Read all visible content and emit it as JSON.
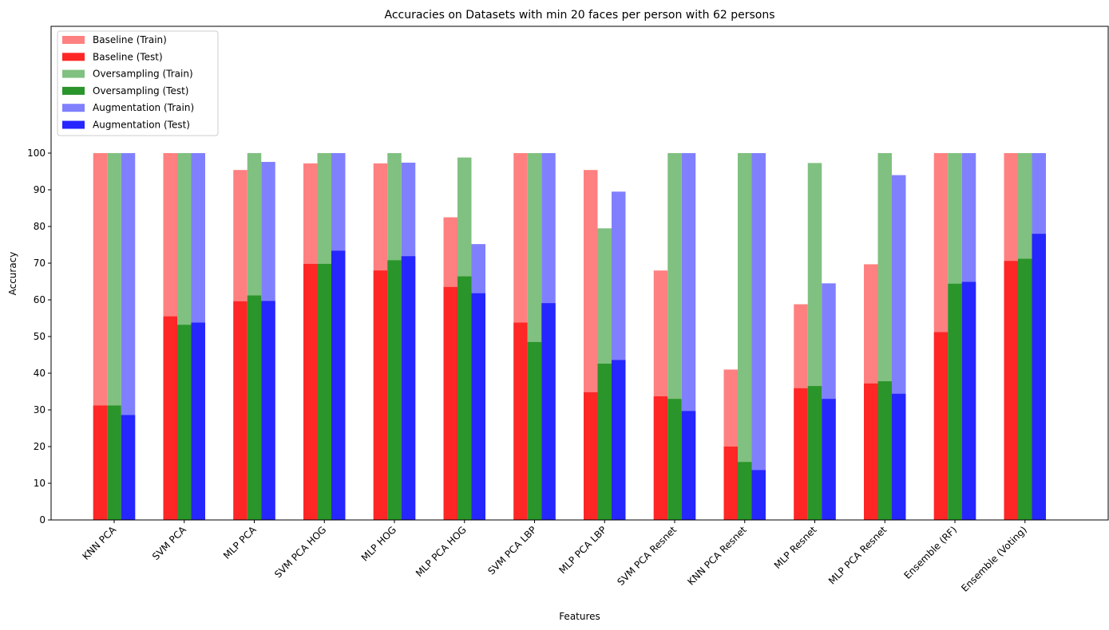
{
  "chart_data": {
    "type": "bar",
    "title": "Accuracies on Datasets with min 20 faces per person with 62 persons",
    "xlabel": "Features",
    "ylabel": "Accuracy",
    "ylim": [
      0,
      120
    ],
    "yticks": [
      0,
      10,
      20,
      30,
      40,
      50,
      60,
      70,
      80,
      90,
      100
    ],
    "grid": false,
    "legend_position": "top-left",
    "categories": [
      "KNN PCA",
      "SVM PCA",
      "MLP PCA",
      "SVM PCA HOG",
      "MLP HOG",
      "MLP PCA HOG",
      "SVM PCA LBP",
      "MLP PCA LBP",
      "SVM PCA Resnet",
      "KNN PCA Resnet",
      "MLP Resnet",
      "MLP PCA Resnet",
      "Ensemble (RF)",
      "Ensemble (Voting)"
    ],
    "groups": [
      {
        "name": "Baseline",
        "train_color": "#ff8080",
        "test_color": "#ff2626",
        "train": {
          "name": "Baseline (Train)",
          "values": [
            100,
            100,
            95.4,
            97.2,
            97.2,
            82.5,
            100,
            95.4,
            68,
            41,
            58.8,
            69.7,
            100,
            100
          ]
        },
        "test": {
          "name": "Baseline (Test)",
          "values": [
            31.2,
            55.5,
            59.6,
            69.8,
            68,
            63.5,
            53.8,
            34.8,
            33.7,
            20,
            35.9,
            37.2,
            51.2,
            70.6
          ]
        }
      },
      {
        "name": "Oversampling",
        "train_color": "#80c080",
        "test_color": "#2a952a",
        "train": {
          "name": "Oversampling (Train)",
          "values": [
            100,
            100,
            100,
            100,
            100,
            98.8,
            100,
            79.5,
            100,
            100,
            97.3,
            100,
            100,
            100
          ]
        },
        "test": {
          "name": "Oversampling (Test)",
          "values": [
            31.2,
            53.2,
            61.2,
            69.8,
            70.8,
            66.4,
            48.5,
            42.6,
            33,
            15.8,
            36.5,
            37.8,
            64.4,
            71.2
          ]
        }
      },
      {
        "name": "Augmentation",
        "train_color": "#8080ff",
        "test_color": "#2626ff",
        "train": {
          "name": "Augmentation (Train)",
          "values": [
            100,
            100,
            97.6,
            100,
            97.4,
            75.2,
            100,
            89.5,
            100,
            100,
            64.5,
            94,
            100,
            100
          ]
        },
        "test": {
          "name": "Augmentation (Test)",
          "values": [
            28.6,
            53.8,
            59.7,
            73.4,
            71.9,
            61.8,
            59.1,
            43.6,
            29.7,
            13.6,
            33,
            34.4,
            64.9,
            78
          ]
        }
      }
    ]
  }
}
